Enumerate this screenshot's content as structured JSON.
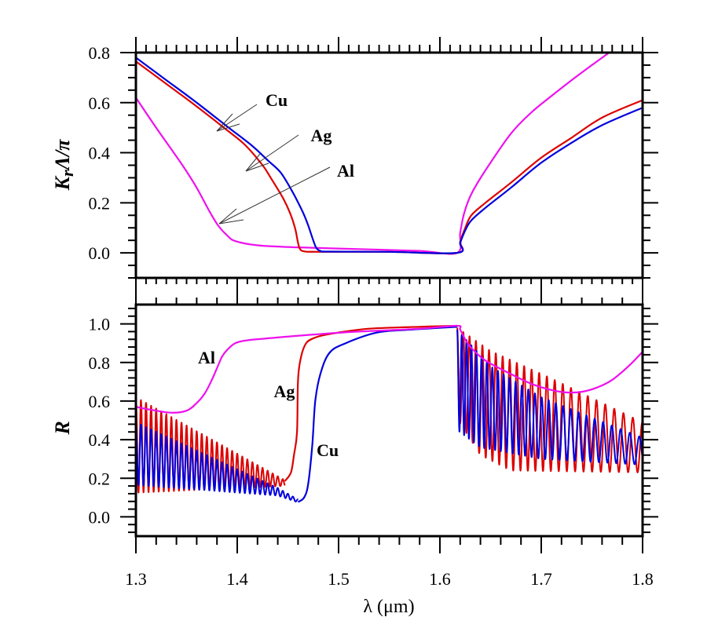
{
  "chart_data": [
    {
      "id": "top",
      "type": "line",
      "ylabel_main": "K",
      "ylabel_sub": "r",
      "ylabel_rest": "Λ/π",
      "xlim": [
        1.3,
        1.8
      ],
      "ylim": [
        -0.1,
        0.8
      ],
      "yticks": [
        0.0,
        0.2,
        0.4,
        0.6,
        0.8
      ],
      "ytick_labels": [
        "0.0",
        "0.2",
        "0.4",
        "0.6",
        "0.8"
      ],
      "grid": false,
      "series": [
        {
          "name": "Cu",
          "color": "#0000dd",
          "x": [
            1.3,
            1.33,
            1.36,
            1.39,
            1.414,
            1.43,
            1.443,
            1.455,
            1.465,
            1.47,
            1.475,
            1.478,
            1.482,
            1.49,
            1.55,
            1.617,
            1.62,
            1.625,
            1.631,
            1.645,
            1.67,
            1.7,
            1.73,
            1.76,
            1.8
          ],
          "y": [
            0.78,
            0.69,
            0.6,
            0.505,
            0.43,
            0.37,
            0.32,
            0.24,
            0.16,
            0.11,
            0.05,
            0.02,
            0.008,
            0.005,
            0.004,
            0.0,
            0.04,
            0.09,
            0.13,
            0.18,
            0.26,
            0.36,
            0.44,
            0.51,
            0.58
          ]
        },
        {
          "name": "Ag",
          "color": "#dd0000",
          "x": [
            1.3,
            1.33,
            1.36,
            1.39,
            1.408,
            1.425,
            1.433,
            1.445,
            1.452,
            1.457,
            1.46,
            1.462,
            1.466,
            1.48,
            1.55,
            1.617,
            1.62,
            1.625,
            1.631,
            1.645,
            1.67,
            1.7,
            1.73,
            1.76,
            1.8
          ],
          "y": [
            0.765,
            0.675,
            0.585,
            0.49,
            0.43,
            0.35,
            0.3,
            0.22,
            0.16,
            0.1,
            0.04,
            0.015,
            0.006,
            0.004,
            0.004,
            0.0,
            0.045,
            0.1,
            0.15,
            0.2,
            0.28,
            0.38,
            0.46,
            0.54,
            0.61
          ]
        },
        {
          "name": "Al",
          "color": "#ee11ee",
          "x": [
            1.3,
            1.32,
            1.346,
            1.36,
            1.372,
            1.381,
            1.39,
            1.398,
            1.42,
            1.46,
            1.52,
            1.58,
            1.617,
            1.62,
            1.624,
            1.631,
            1.645,
            1.67,
            1.69,
            1.708,
            1.73,
            1.75,
            1.767
          ],
          "y": [
            0.62,
            0.5,
            0.35,
            0.26,
            0.17,
            0.11,
            0.07,
            0.047,
            0.03,
            0.022,
            0.015,
            0.008,
            0.0,
            0.08,
            0.16,
            0.235,
            0.33,
            0.476,
            0.56,
            0.62,
            0.69,
            0.75,
            0.8
          ]
        }
      ],
      "annotations": [
        {
          "text": "Cu",
          "points_to": [
            1.381,
            0.48
          ]
        },
        {
          "text": "Ag",
          "points_to": [
            1.408,
            0.325
          ]
        },
        {
          "text": "Al",
          "points_to": [
            1.382,
            0.115
          ]
        }
      ]
    },
    {
      "id": "bottom",
      "type": "line",
      "ylabel": "R",
      "xlabel": "λ (μm)",
      "xlim": [
        1.3,
        1.8
      ],
      "ylim": [
        -0.1,
        1.1
      ],
      "xticks": [
        1.3,
        1.4,
        1.5,
        1.6,
        1.7,
        1.8
      ],
      "xtick_labels": [
        "1.3",
        "1.4",
        "1.5",
        "1.6",
        "1.7",
        "1.8"
      ],
      "yticks": [
        0.0,
        0.2,
        0.4,
        0.6,
        0.8,
        1.0
      ],
      "ytick_labels": [
        "0.0",
        "0.2",
        "0.4",
        "0.6",
        "0.8",
        "1.0"
      ],
      "grid": false,
      "series": [
        {
          "name": "Al",
          "color": "#ee11ee",
          "x": [
            1.3,
            1.315,
            1.334,
            1.35,
            1.36,
            1.368,
            1.375,
            1.38,
            1.385,
            1.39,
            1.398,
            1.41,
            1.43,
            1.476,
            1.52,
            1.58,
            1.617,
            1.62,
            1.625,
            1.631,
            1.645,
            1.67,
            1.69,
            1.708,
            1.724,
            1.74,
            1.755,
            1.77,
            1.786,
            1.8
          ],
          "y": [
            0.57,
            0.555,
            0.54,
            0.55,
            0.59,
            0.64,
            0.71,
            0.77,
            0.83,
            0.865,
            0.9,
            0.915,
            0.925,
            0.945,
            0.96,
            0.975,
            0.99,
            0.97,
            0.92,
            0.875,
            0.81,
            0.74,
            0.69,
            0.66,
            0.645,
            0.648,
            0.67,
            0.71,
            0.78,
            0.855
          ]
        },
        {
          "name": "Ag",
          "color": "#dd0000",
          "oscillation_left": {
            "x_range": [
              1.3,
              1.447
            ],
            "period": 0.005,
            "upper": [
              [
                1.3,
                0.62
              ],
              [
                1.447,
                0.19
              ]
            ],
            "lower": [
              [
                1.3,
                0.125
              ],
              [
                1.447,
                0.16
              ]
            ]
          },
          "x": [
            1.447,
            1.453,
            1.456,
            1.459,
            1.46,
            1.463,
            1.468,
            1.475,
            1.484,
            1.5,
            1.53,
            1.58,
            1.617
          ],
          "y": [
            0.185,
            0.23,
            0.32,
            0.44,
            0.71,
            0.83,
            0.9,
            0.925,
            0.94,
            0.955,
            0.975,
            0.985,
            0.99
          ],
          "oscillation_right": {
            "x_range": [
              1.617,
              1.8
            ],
            "period_start": 0.006,
            "period_end": 0.0095,
            "upper": [
              [
                1.617,
                0.98
              ],
              [
                1.65,
                0.86
              ],
              [
                1.709,
                0.72
              ],
              [
                1.8,
                0.49
              ]
            ],
            "lower": [
              [
                1.617,
                0.51
              ],
              [
                1.64,
                0.32
              ],
              [
                1.67,
                0.24
              ],
              [
                1.8,
                0.23
              ]
            ]
          }
        },
        {
          "name": "Cu",
          "color": "#0000dd",
          "oscillation_left": {
            "x_range": [
              1.3,
              1.46
            ],
            "period": 0.005,
            "upper": [
              [
                1.3,
                0.49
              ],
              [
                1.44,
                0.15
              ],
              [
                1.46,
                0.09
              ]
            ],
            "lower": [
              [
                1.3,
                0.165
              ],
              [
                1.44,
                0.11
              ],
              [
                1.46,
                0.075
              ]
            ]
          },
          "x": [
            1.46,
            1.466,
            1.47,
            1.474,
            1.477,
            1.482,
            1.491,
            1.507,
            1.538,
            1.57,
            1.617
          ],
          "y": [
            0.077,
            0.1,
            0.17,
            0.37,
            0.6,
            0.74,
            0.85,
            0.9,
            0.955,
            0.97,
            0.985
          ],
          "oscillation_right": {
            "x_range": [
              1.617,
              1.8
            ],
            "period_start": 0.0045,
            "period_end": 0.0095,
            "upper": [
              [
                1.617,
                0.97
              ],
              [
                1.65,
                0.78
              ],
              [
                1.7,
                0.62
              ],
              [
                1.8,
                0.41
              ]
            ],
            "lower": [
              [
                1.617,
                0.45
              ],
              [
                1.64,
                0.36
              ],
              [
                1.7,
                0.3
              ],
              [
                1.8,
                0.27
              ]
            ]
          }
        }
      ],
      "annotations": [
        {
          "text": "Al"
        },
        {
          "text": "Ag"
        },
        {
          "text": "Cu"
        }
      ]
    }
  ]
}
